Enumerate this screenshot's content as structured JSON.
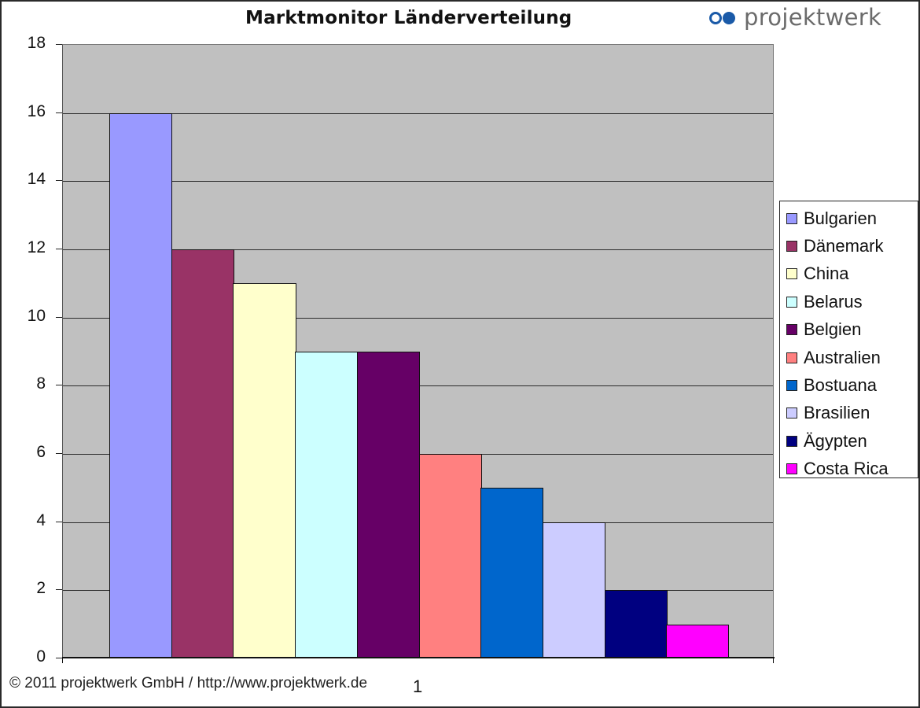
{
  "title": "Marktmonitor Länderverteilung",
  "logo": {
    "icon": "projektwerk-logo-mark",
    "text": "projektwerk",
    "color": "#1a5aa8"
  },
  "footer": {
    "copyright": "© 2011 projektwerk GmbH / http://www.projektwerk.de"
  },
  "x_category_label": "1",
  "chart_data": {
    "type": "bar",
    "title": "Marktmonitor Länderverteilung",
    "xlabel": "",
    "ylabel": "",
    "categories": [
      "1"
    ],
    "ylim": [
      0,
      18
    ],
    "yticks": [
      0,
      2,
      4,
      6,
      8,
      10,
      12,
      14,
      16,
      18
    ],
    "grid": true,
    "legend_position": "right",
    "plot_background": "#c0c0c0",
    "series": [
      {
        "name": "Bulgarien",
        "values": [
          16
        ],
        "color": "#9999ff"
      },
      {
        "name": "Dänemark",
        "values": [
          12
        ],
        "color": "#993366"
      },
      {
        "name": "China",
        "values": [
          11
        ],
        "color": "#ffffcc"
      },
      {
        "name": "Belarus",
        "values": [
          9
        ],
        "color": "#ccffff"
      },
      {
        "name": "Belgien",
        "values": [
          9
        ],
        "color": "#660066"
      },
      {
        "name": "Australien",
        "values": [
          6
        ],
        "color": "#ff8080"
      },
      {
        "name": "Bostuana",
        "values": [
          5
        ],
        "color": "#0066cc"
      },
      {
        "name": "Brasilien",
        "values": [
          4
        ],
        "color": "#ccccff"
      },
      {
        "name": "Ägypten",
        "values": [
          2
        ],
        "color": "#000080"
      },
      {
        "name": "Costa Rica",
        "values": [
          1
        ],
        "color": "#ff00ff"
      }
    ]
  }
}
